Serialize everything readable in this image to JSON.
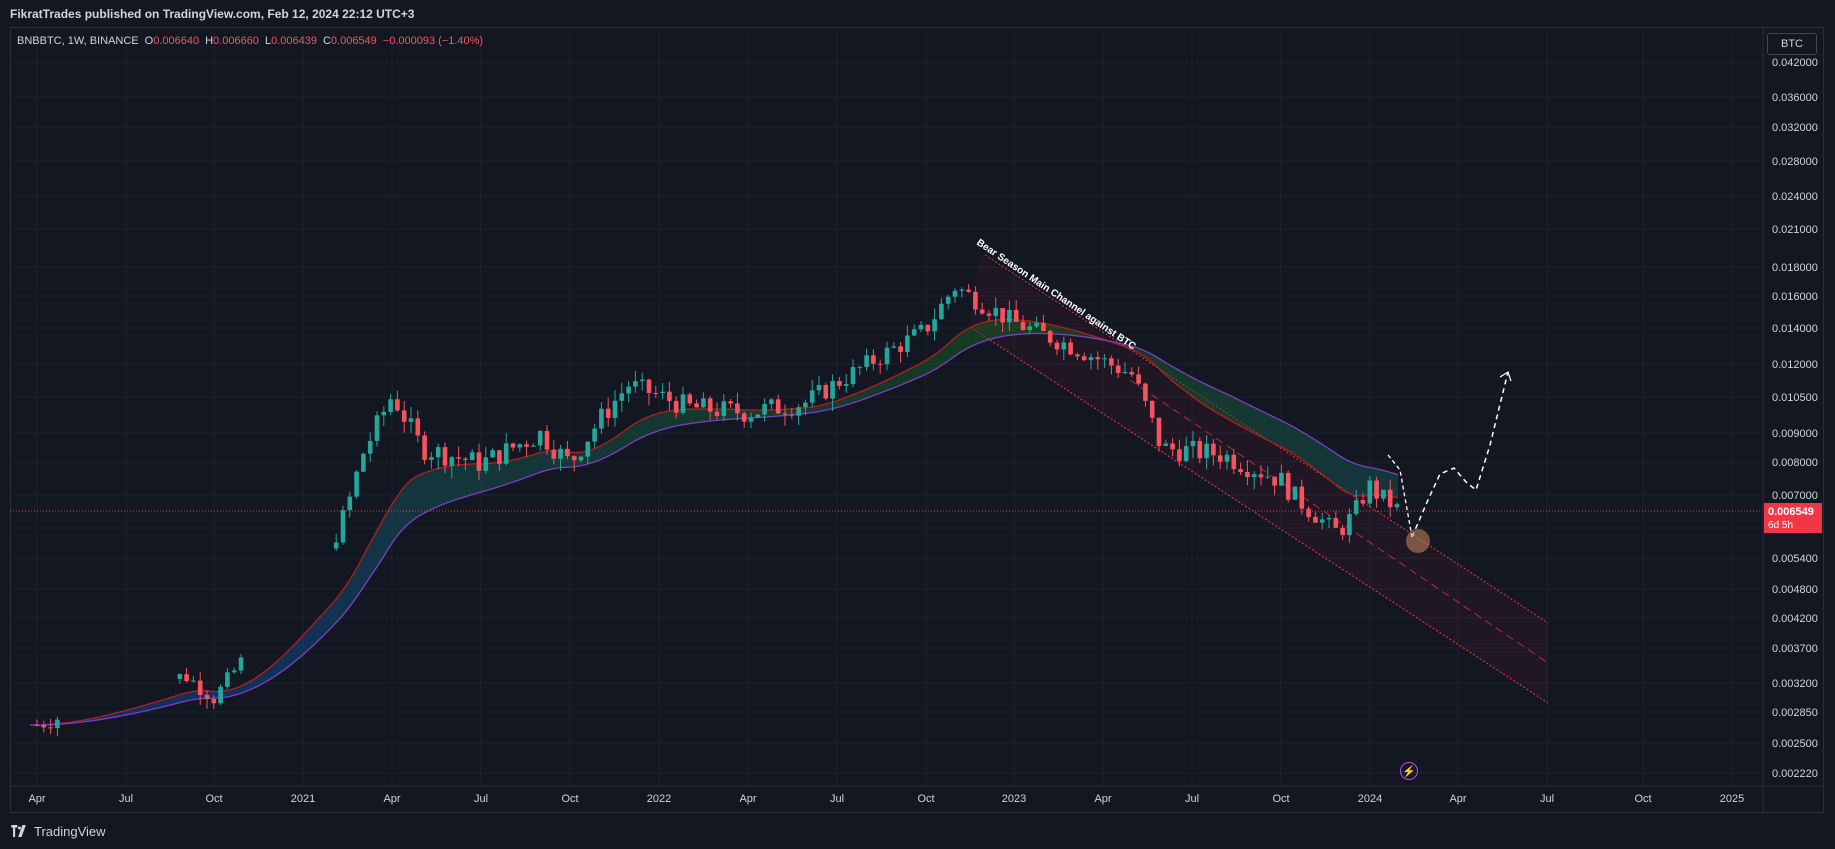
{
  "header": {
    "published_text": "FikratTrades published on TradingView.com, Feb 12, 2024 22:12 UTC+3"
  },
  "legend": {
    "symbol": "BNBBTC, 1W, BINANCE",
    "open_label": "O",
    "open": "0.006640",
    "high_label": "H",
    "high": "0.006660",
    "low_label": "L",
    "low": "0.006439",
    "close_label": "C",
    "close": "0.006549",
    "change": "−0.000093 (−1.40%)"
  },
  "currency_button": "BTC",
  "current_price": {
    "value": "0.006549",
    "countdown": "6d 5h"
  },
  "annotation": {
    "text": "Bear Season Main Channel against BTC"
  },
  "footer": {
    "brand": "TradingView"
  },
  "icons": {
    "logo": "tradingview-logo-icon",
    "alert": "lightning-icon"
  },
  "colors": {
    "up": "#26a69a",
    "down": "#f7525f",
    "ma": "#7b3fc4",
    "channel": "#f23645",
    "price_line": "#f23645",
    "forecast": "#ffffff"
  },
  "chart_data": {
    "type": "candlestick",
    "symbol": "BNBBTC",
    "interval": "1W",
    "exchange": "BINANCE",
    "scale": "log",
    "y_ticks": [
      "0.042000",
      "0.036000",
      "0.032000",
      "0.028000",
      "0.024000",
      "0.021000",
      "0.018000",
      "0.016000",
      "0.014000",
      "0.012000",
      "0.010500",
      "0.009000",
      "0.008000",
      "0.007000",
      "0.006000",
      "0.005400",
      "0.004800",
      "0.004200",
      "0.003700",
      "0.003200",
      "0.002850",
      "0.002500",
      "0.002220"
    ],
    "x_ticks": [
      "Apr",
      "Jul",
      "Oct",
      "2021",
      "Apr",
      "Jul",
      "Oct",
      "2022",
      "Apr",
      "Jul",
      "Oct",
      "2023",
      "Apr",
      "Jul",
      "Oct",
      "2024",
      "Apr",
      "Jul",
      "Oct",
      "2025"
    ],
    "current_price": 0.006549,
    "approx_series": [
      {
        "date": "2020-04",
        "close": 0.0021
      },
      {
        "date": "2020-09",
        "close": 0.0027
      },
      {
        "date": "2020-10",
        "close": 0.0024
      },
      {
        "date": "2021-02",
        "close": 0.0055
      },
      {
        "date": "2021-03",
        "close": 0.0083
      },
      {
        "date": "2021-04",
        "close": 0.0105
      },
      {
        "date": "2021-05",
        "close": 0.0085
      },
      {
        "date": "2021-07",
        "close": 0.008
      },
      {
        "date": "2021-09",
        "close": 0.009
      },
      {
        "date": "2021-10",
        "close": 0.008
      },
      {
        "date": "2021-11",
        "close": 0.0095
      },
      {
        "date": "2021-12",
        "close": 0.011
      },
      {
        "date": "2022-02",
        "close": 0.01
      },
      {
        "date": "2022-04",
        "close": 0.0098
      },
      {
        "date": "2022-06",
        "close": 0.0102
      },
      {
        "date": "2022-08",
        "close": 0.012
      },
      {
        "date": "2022-10",
        "close": 0.014
      },
      {
        "date": "2022-11",
        "close": 0.017
      },
      {
        "date": "2023-01",
        "close": 0.0145
      },
      {
        "date": "2023-03",
        "close": 0.013
      },
      {
        "date": "2023-05",
        "close": 0.0115
      },
      {
        "date": "2023-06",
        "close": 0.0085
      },
      {
        "date": "2023-08",
        "close": 0.0083
      },
      {
        "date": "2023-10",
        "close": 0.0075
      },
      {
        "date": "2023-11",
        "close": 0.0065
      },
      {
        "date": "2023-12",
        "close": 0.0058
      },
      {
        "date": "2024-01",
        "close": 0.0073
      },
      {
        "date": "2024-02",
        "close": 0.006549
      }
    ]
  }
}
